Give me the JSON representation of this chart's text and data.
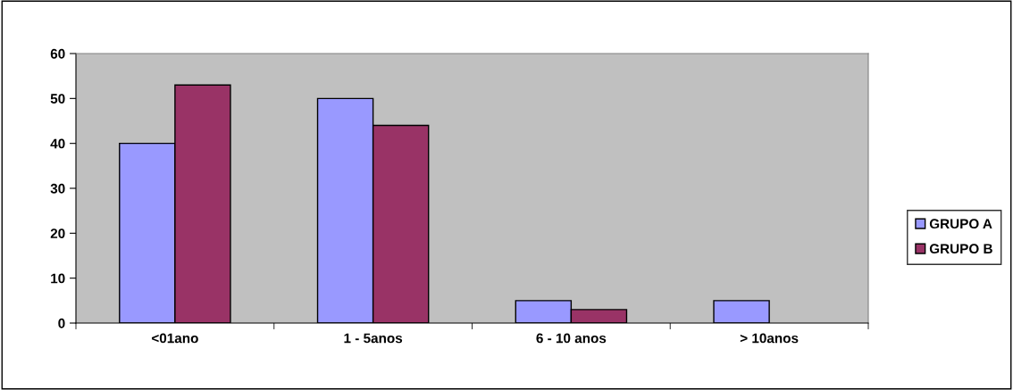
{
  "chart_data": {
    "type": "bar",
    "categories": [
      "<01ano",
      "1 - 5anos",
      "6 - 10 anos",
      "> 10anos"
    ],
    "series": [
      {
        "name": "GRUPO A",
        "color": "#9999ff",
        "values": [
          40,
          50,
          5,
          5
        ]
      },
      {
        "name": "GRUPO B",
        "color": "#993366",
        "values": [
          53,
          44,
          3,
          null
        ]
      }
    ],
    "ylim": [
      0,
      60
    ],
    "yticks": [
      0,
      10,
      20,
      30,
      40,
      50,
      60
    ],
    "grid": false,
    "legend": "right"
  }
}
